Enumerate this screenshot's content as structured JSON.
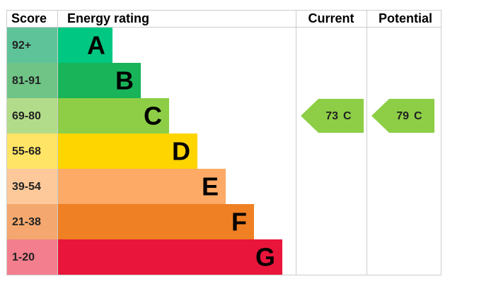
{
  "header": {
    "score": "Score",
    "energy_rating": "Energy rating",
    "current": "Current",
    "potential": "Potential"
  },
  "bands": [
    {
      "score": "92+",
      "letter": "A",
      "score_color": "#5fc39a",
      "color": "#00c781"
    },
    {
      "score": "81-91",
      "letter": "B",
      "score_color": "#6fc486",
      "color": "#19b459"
    },
    {
      "score": "69-80",
      "letter": "C",
      "score_color": "#b3dc8a",
      "color": "#8dce46"
    },
    {
      "score": "55-68",
      "letter": "D",
      "score_color": "#ffe465",
      "color": "#ffd500"
    },
    {
      "score": "39-54",
      "letter": "E",
      "score_color": "#fdc99b",
      "color": "#fcaa65"
    },
    {
      "score": "21-38",
      "letter": "F",
      "score_color": "#f4a86f",
      "color": "#ef8023"
    },
    {
      "score": "1-20",
      "letter": "G",
      "score_color": "#f37e8d",
      "color": "#e9153b"
    }
  ],
  "current": {
    "score": 73,
    "band": "C"
  },
  "potential": {
    "score": 79,
    "band": "C"
  }
}
